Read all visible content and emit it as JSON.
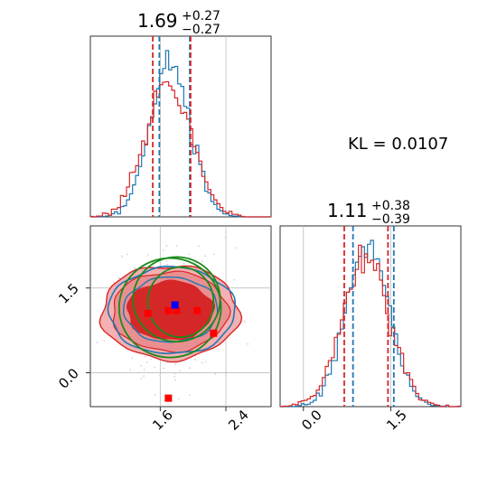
{
  "chart_data": [
    {
      "type": "histogram",
      "panel": "top-left",
      "title": {
        "value": "1.69",
        "plus": "+0.27",
        "minus": "−0.27"
      },
      "xlim": [
        0.75,
        2.95
      ],
      "series": [
        {
          "name": "",
          "color": "#1f77b4",
          "center": 1.72,
          "sd": 0.24,
          "quantiles": [
            1.59,
            1.96
          ]
        },
        {
          "name": "",
          "color": "#d62728",
          "center": 1.7,
          "sd": 0.28,
          "quantiles": [
            1.51,
            1.97
          ]
        }
      ]
    },
    {
      "type": "histogram",
      "panel": "bottom-right",
      "title": {
        "value": "1.11",
        "plus": "+0.38",
        "minus": "−0.39"
      },
      "xlim": [
        -0.4,
        2.7
      ],
      "xticks": [
        "0.0",
        "1.5"
      ],
      "series": [
        {
          "name": "",
          "color": "#1f77b4",
          "center": 1.1,
          "sd": 0.36,
          "quantiles": [
            0.85,
            1.55
          ]
        },
        {
          "name": "",
          "color": "#d62728",
          "center": 1.08,
          "sd": 0.4,
          "quantiles": [
            0.7,
            1.45
          ]
        }
      ]
    },
    {
      "type": "contour",
      "panel": "bottom-left",
      "xlim": [
        0.75,
        2.95
      ],
      "ylim": [
        -0.6,
        2.6
      ],
      "xticks": [
        "1.6",
        "2.4"
      ],
      "yticks": [
        "0.0",
        "1.5"
      ],
      "center": [
        1.72,
        1.1
      ],
      "blue_marker": [
        1.78,
        1.2
      ],
      "red_markers": [
        [
          1.7,
          -0.45
        ],
        [
          1.45,
          1.05
        ],
        [
          1.7,
          1.1
        ],
        [
          1.8,
          1.1
        ],
        [
          2.05,
          1.1
        ],
        [
          2.25,
          0.7
        ]
      ],
      "green_ellipses": [
        {
          "cx": 1.8,
          "cy": 1.3,
          "rx": 0.53,
          "ry": 0.75
        },
        {
          "cx": 1.72,
          "cy": 1.15,
          "rx": 0.62,
          "ry": 0.88
        },
        {
          "cx": 1.85,
          "cy": 1.25,
          "rx": 0.4,
          "ry": 0.62
        }
      ]
    }
  ],
  "kl": "KL = 0.0107"
}
